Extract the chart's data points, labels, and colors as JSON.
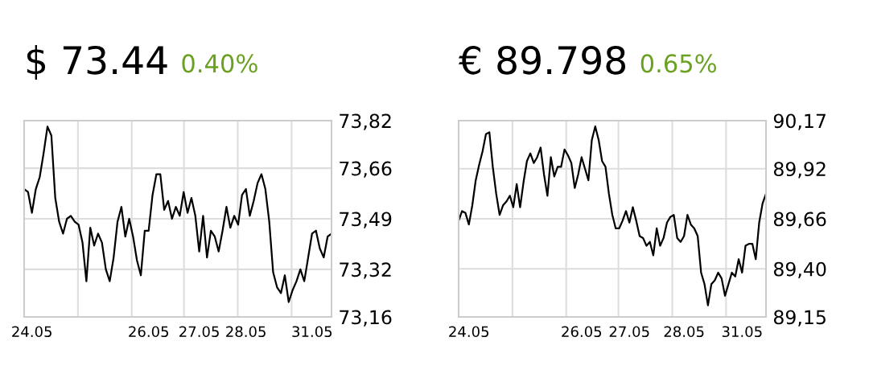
{
  "chart_data": [
    {
      "type": "line",
      "title": "$ 73.44",
      "subtitle": "0.40%",
      "grid": true,
      "legend": false,
      "ylim": [
        73.16,
        73.82
      ],
      "categories": [
        null,
        null,
        "24.05",
        null,
        null,
        null,
        null,
        null,
        null,
        null,
        null,
        null,
        null,
        null,
        null,
        null,
        null,
        null,
        null,
        null,
        null,
        null,
        null,
        null,
        null,
        null,
        null,
        null,
        null,
        null,
        null,
        null,
        "26.05",
        null,
        null,
        null,
        null,
        null,
        null,
        null,
        null,
        null,
        null,
        null,
        null,
        "27.05",
        null,
        null,
        null,
        null,
        null,
        null,
        null,
        null,
        null,
        null,
        null,
        "28.05",
        null,
        null,
        null,
        null,
        null,
        null,
        null,
        null,
        null,
        null,
        null,
        null,
        null,
        null,
        null,
        null,
        "31.05",
        null,
        null,
        null,
        null,
        null
      ],
      "yticks": [
        {
          "value": 73.16,
          "label": "73,16"
        },
        {
          "value": 73.32,
          "label": "73,32"
        },
        {
          "value": 73.49,
          "label": "73,49"
        },
        {
          "value": 73.66,
          "label": "73,66"
        },
        {
          "value": 73.82,
          "label": "73,82"
        }
      ],
      "series": [
        {
          "color": "#000000",
          "values": [
            73.59,
            73.58,
            73.51,
            73.59,
            73.63,
            73.71,
            73.8,
            73.77,
            73.56,
            73.48,
            73.44,
            73.49,
            73.5,
            73.48,
            73.47,
            73.41,
            73.28,
            73.46,
            73.4,
            73.44,
            73.41,
            73.32,
            73.28,
            73.36,
            73.48,
            73.53,
            73.43,
            73.49,
            73.43,
            73.35,
            73.3,
            73.45,
            73.45,
            73.57,
            73.64,
            73.64,
            73.52,
            73.55,
            73.49,
            73.53,
            73.5,
            73.58,
            73.51,
            73.56,
            73.5,
            73.38,
            73.5,
            73.36,
            73.45,
            73.43,
            73.38,
            73.45,
            73.53,
            73.46,
            73.5,
            73.47,
            73.57,
            73.59,
            73.5,
            73.55,
            73.61,
            73.64,
            73.59,
            73.48,
            73.31,
            73.26,
            73.24,
            73.3,
            73.21,
            73.25,
            73.28,
            73.32,
            73.28,
            73.36,
            73.44,
            73.45,
            73.39,
            73.36,
            73.43,
            73.44
          ]
        }
      ]
    },
    {
      "type": "line",
      "title": "€ 89.798",
      "subtitle": "0.65%",
      "grid": true,
      "legend": false,
      "ylim": [
        89.15,
        90.17
      ],
      "categories": [
        null,
        null,
        null,
        "24.05",
        null,
        null,
        null,
        null,
        null,
        null,
        null,
        null,
        null,
        null,
        null,
        null,
        null,
        null,
        null,
        null,
        null,
        null,
        null,
        null,
        null,
        null,
        null,
        null,
        null,
        null,
        null,
        null,
        null,
        null,
        null,
        null,
        "26.05",
        null,
        null,
        null,
        null,
        null,
        null,
        null,
        null,
        null,
        null,
        null,
        null,
        null,
        "27.05",
        null,
        null,
        null,
        null,
        null,
        null,
        null,
        null,
        null,
        null,
        null,
        null,
        null,
        null,
        null,
        "28.05",
        null,
        null,
        null,
        null,
        null,
        null,
        null,
        null,
        null,
        null,
        null,
        null,
        null,
        null,
        null,
        null,
        "31.05",
        null,
        null,
        null,
        null,
        null,
        null,
        null
      ],
      "yticks": [
        {
          "value": 89.15,
          "label": "89,15"
        },
        {
          "value": 89.4,
          "label": "89,40"
        },
        {
          "value": 89.66,
          "label": "89,66"
        },
        {
          "value": 89.92,
          "label": "89,92"
        },
        {
          "value": 90.17,
          "label": "90,17"
        }
      ],
      "series": [
        {
          "color": "#000000",
          "values": [
            89.65,
            89.7,
            89.69,
            89.63,
            89.73,
            89.86,
            89.94,
            90.01,
            90.1,
            90.11,
            89.93,
            89.79,
            89.68,
            89.73,
            89.75,
            89.78,
            89.72,
            89.84,
            89.72,
            89.85,
            89.96,
            90.0,
            89.95,
            89.98,
            90.03,
            89.89,
            89.78,
            89.98,
            89.88,
            89.93,
            89.93,
            90.02,
            89.99,
            89.95,
            89.82,
            89.89,
            89.98,
            89.92,
            89.86,
            90.07,
            90.14,
            90.07,
            89.96,
            89.93,
            89.79,
            89.68,
            89.61,
            89.61,
            89.65,
            89.7,
            89.64,
            89.72,
            89.65,
            89.57,
            89.56,
            89.52,
            89.54,
            89.47,
            89.61,
            89.52,
            89.56,
            89.64,
            89.67,
            89.68,
            89.56,
            89.54,
            89.57,
            89.68,
            89.63,
            89.61,
            89.57,
            89.38,
            89.32,
            89.21,
            89.32,
            89.34,
            89.38,
            89.35,
            89.26,
            89.32,
            89.38,
            89.36,
            89.45,
            89.38,
            89.52,
            89.53,
            89.53,
            89.45,
            89.64,
            89.74,
            89.79
          ]
        }
      ]
    }
  ]
}
